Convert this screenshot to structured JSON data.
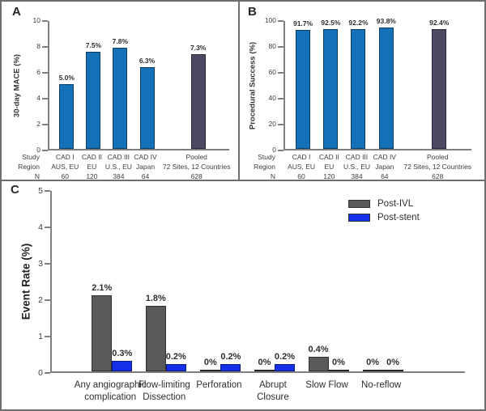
{
  "chart_data": [
    {
      "panel": "A",
      "type": "bar",
      "title": "",
      "ylabel": "30-day MACE (%)",
      "ylim": [
        0,
        10
      ],
      "yticks": [
        0,
        2,
        4,
        6,
        8,
        10
      ],
      "grid": false,
      "row_headers": [
        "Study",
        "Region",
        "N"
      ],
      "categories": [
        "CAD I",
        "CAD II",
        "CAD III",
        "CAD IV",
        "Pooled"
      ],
      "regions": [
        "AUS, EU",
        "EU",
        "U.S., EU",
        "Japan",
        "72 Sites, 12 Countries"
      ],
      "n": [
        "60",
        "120",
        "384",
        "64",
        "628"
      ],
      "values": [
        5.0,
        7.5,
        7.8,
        6.3,
        7.3
      ],
      "labels": [
        "5.0%",
        "7.5%",
        "7.8%",
        "6.3%",
        "7.3%"
      ],
      "bar_colors": [
        "#1572b8",
        "#1572b8",
        "#1572b8",
        "#1572b8",
        "#4c4a63"
      ]
    },
    {
      "panel": "B",
      "type": "bar",
      "title": "",
      "ylabel": "Procedural Success (%)",
      "ylim": [
        0,
        100
      ],
      "yticks": [
        0,
        20,
        40,
        60,
        80,
        100
      ],
      "grid": false,
      "row_headers": [
        "Study",
        "Region",
        "N"
      ],
      "categories": [
        "CAD I",
        "CAD II",
        "CAD III",
        "CAD IV",
        "Pooled"
      ],
      "regions": [
        "AUS, EU",
        "EU",
        "U.S., EU",
        "Japan",
        "72 Sites, 12 Countries"
      ],
      "n": [
        "60",
        "120",
        "384",
        "64",
        "628"
      ],
      "values": [
        91.7,
        92.5,
        92.2,
        93.8,
        92.4
      ],
      "labels": [
        "91.7%",
        "92.5%",
        "92.2%",
        "93.8%",
        "92.4%"
      ],
      "bar_colors": [
        "#1572b8",
        "#1572b8",
        "#1572b8",
        "#1572b8",
        "#4c4a63"
      ]
    },
    {
      "panel": "C",
      "type": "bar",
      "title": "",
      "ylabel": "Event Rate (%)",
      "ylim": [
        0,
        5
      ],
      "yticks": [
        0,
        1,
        2,
        3,
        4,
        5
      ],
      "grid": false,
      "legend_position": "top-right",
      "categories": [
        "Any angiographic\ncomplication",
        "Flow-limiting\nDissection",
        "Perforation",
        "Abrupt\nClosure",
        "Slow Flow",
        "No-reflow"
      ],
      "series": [
        {
          "name": "Post-IVL",
          "color": "#595959",
          "values": [
            2.1,
            1.8,
            0,
            0,
            0.4,
            0
          ],
          "labels": [
            "2.1%",
            "1.8%",
            "0%",
            "0%",
            "0.4%",
            "0%"
          ]
        },
        {
          "name": "Post-stent",
          "color": "#1430e8",
          "values": [
            0.3,
            0.2,
            0.2,
            0.2,
            0,
            0
          ],
          "labels": [
            "0.3%",
            "0.2%",
            "0.2%",
            "0.2%",
            "0%",
            "0%"
          ]
        }
      ]
    }
  ]
}
